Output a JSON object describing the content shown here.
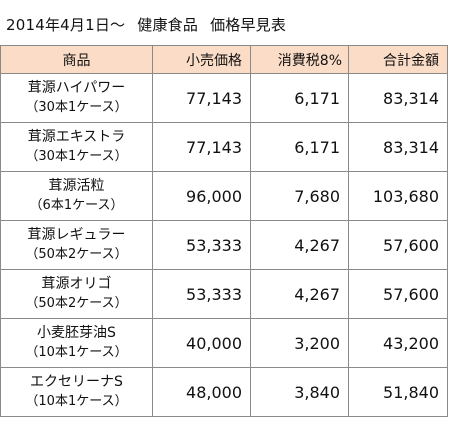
{
  "title": {
    "period": "2014年4月1日～",
    "category": "健康食品",
    "label": "価格早見表"
  },
  "header_color": "#fbdcc7",
  "columns": [
    "商品",
    "小売価格",
    "消費税8%",
    "合計金額"
  ],
  "rows": [
    {
      "name": "茸源ハイパワー",
      "pack": "（30本1ケース）",
      "price": "77,143",
      "tax": "6,171",
      "total": "83,314"
    },
    {
      "name": "茸源エキストラ",
      "pack": "（30本1ケース）",
      "price": "77,143",
      "tax": "6,171",
      "total": "83,314"
    },
    {
      "name": "茸源活粒",
      "pack": "（6本1ケース）",
      "price": "96,000",
      "tax": "7,680",
      "total": "103,680"
    },
    {
      "name": "茸源レギュラー",
      "pack": "（50本2ケース）",
      "price": "53,333",
      "tax": "4,267",
      "total": "57,600"
    },
    {
      "name": "茸源オリゴ",
      "pack": "（50本2ケース）",
      "price": "53,333",
      "tax": "4,267",
      "total": "57,600"
    },
    {
      "name": "小麦胚芽油S",
      "pack": "（10本1ケース）",
      "price": "40,000",
      "tax": "3,200",
      "total": "43,200"
    },
    {
      "name": "エクセリーナS",
      "pack": "（10本1ケース）",
      "price": "48,000",
      "tax": "3,840",
      "total": "51,840"
    }
  ]
}
